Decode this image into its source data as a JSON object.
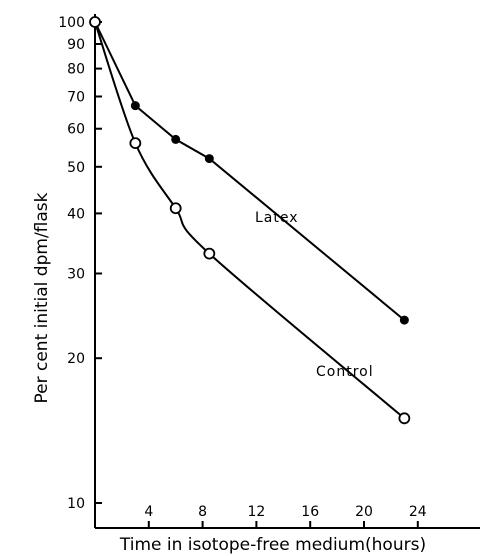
{
  "chart_data": {
    "type": "line",
    "title": "",
    "xlabel": "Time in isotope-free medium(hours)",
    "ylabel": "Per cent initial dpm/flask",
    "xlim": [
      0,
      28
    ],
    "ylim": [
      10,
      100
    ],
    "yscale": "log",
    "grid": false,
    "x_ticks": [
      4,
      8,
      12,
      16,
      20,
      24
    ],
    "x_tick_labels": [
      "4",
      "8",
      "12",
      "16",
      "20",
      "24"
    ],
    "y_ticks": [
      10,
      20,
      30,
      40,
      50,
      60,
      70,
      80,
      90,
      100
    ],
    "y_tick_labels": [
      "10",
      "20",
      "30",
      "40",
      "50",
      "60",
      "70",
      "80",
      "90",
      "100"
    ],
    "series": [
      {
        "name": "Latex",
        "marker": "filled-circle",
        "x": [
          0,
          3,
          6,
          8.5,
          23
        ],
        "y": [
          100,
          67,
          57,
          52,
          24
        ]
      },
      {
        "name": "Control",
        "marker": "open-circle",
        "x": [
          0,
          3,
          6,
          8.5,
          23
        ],
        "y": [
          100,
          56,
          41,
          33,
          15
        ]
      }
    ]
  }
}
